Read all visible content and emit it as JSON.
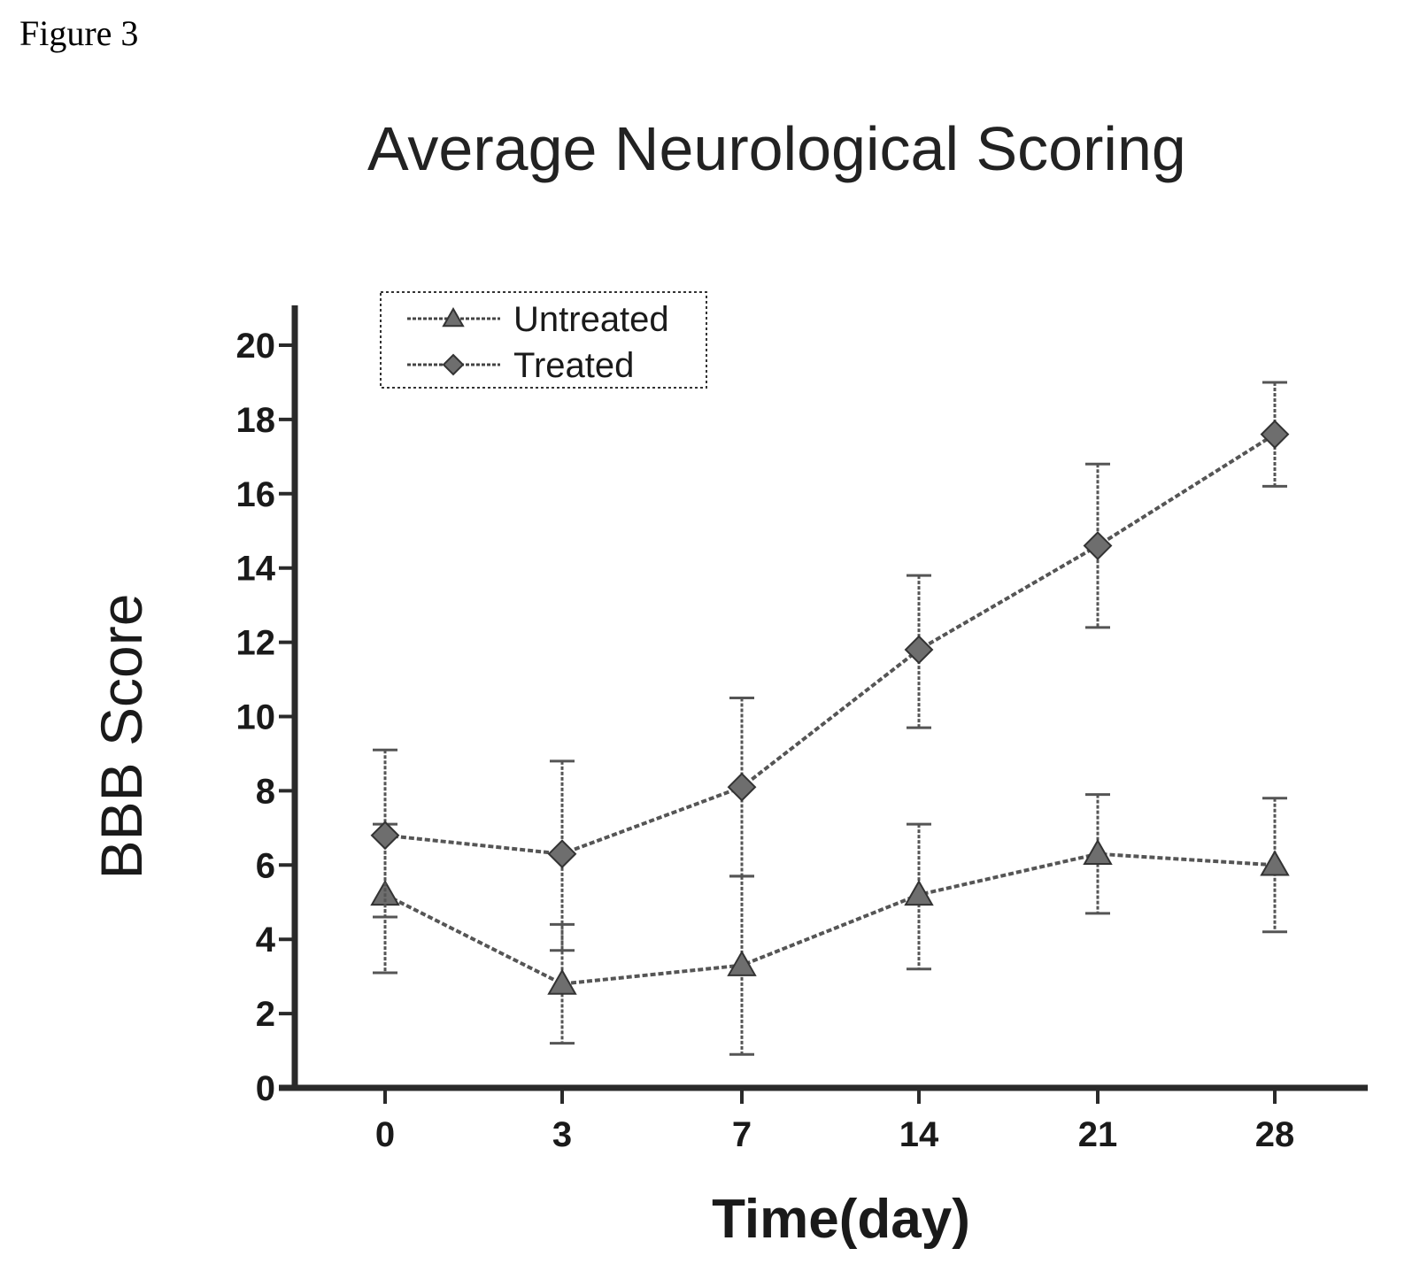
{
  "figure_label": "Figure 3",
  "chart_data": {
    "type": "line",
    "title": "Average Neurological Scoring",
    "xlabel": "Time(day)",
    "ylabel": "BBB Score",
    "x_ticks": [
      "0",
      "3",
      "7",
      "14",
      "21",
      "28"
    ],
    "y_ticks": [
      "0",
      "2",
      "4",
      "6",
      "8",
      "10",
      "12",
      "14",
      "16",
      "18",
      "20"
    ],
    "ylim": [
      0,
      21
    ],
    "x_scale": "categorical, evenly spaced",
    "legend_position": "top-left",
    "grid": false,
    "series": [
      {
        "name": "Untreated",
        "marker": "triangle",
        "color": "#555555",
        "values": [
          5.2,
          2.8,
          3.3,
          5.2,
          6.3,
          6.0
        ],
        "error_low": [
          3.1,
          1.2,
          0.9,
          3.2,
          4.7,
          4.2
        ],
        "error_high": [
          7.1,
          4.4,
          5.7,
          7.1,
          7.9,
          7.8
        ]
      },
      {
        "name": "Treated",
        "marker": "diamond",
        "color": "#555555",
        "values": [
          6.8,
          6.3,
          8.1,
          11.8,
          14.6,
          17.6
        ],
        "error_low": [
          4.6,
          3.7,
          5.7,
          9.7,
          12.4,
          16.2
        ],
        "error_high": [
          9.1,
          8.8,
          10.5,
          13.8,
          16.8,
          19.0
        ]
      }
    ]
  }
}
